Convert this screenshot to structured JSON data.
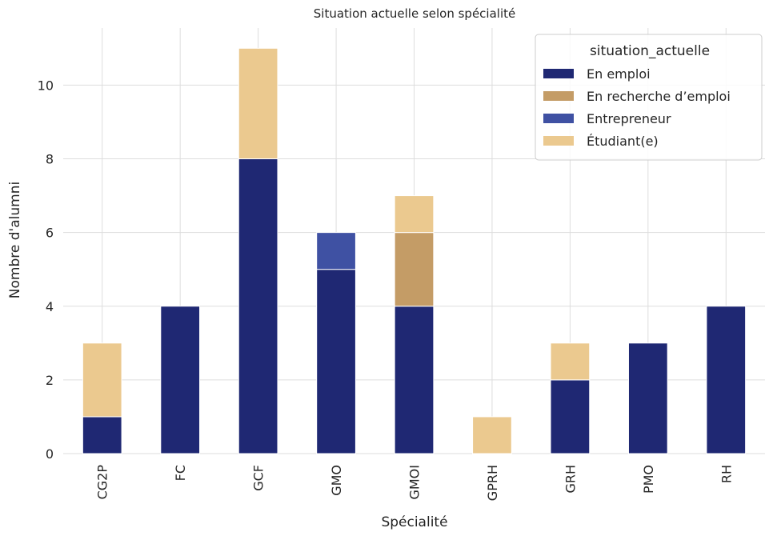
{
  "chart_data": {
    "type": "bar",
    "stacked": true,
    "title": "Situation actuelle selon spécialité",
    "xlabel": "Spécialité",
    "ylabel": "Nombre d'alumni",
    "ylim": [
      0,
      11.55
    ],
    "yticks": [
      0,
      2,
      4,
      6,
      8,
      10
    ],
    "grid": true,
    "legend_position": "top-right",
    "legend_title": "situation_actuelle",
    "categories": [
      "CG2P",
      "FC",
      "GCF",
      "GMO",
      "GMOI",
      "GPRH",
      "GRH",
      "PMO",
      "RH"
    ],
    "series": [
      {
        "name": "En emploi",
        "color": "#1f2873",
        "values": [
          1,
          4,
          8,
          5,
          4,
          0,
          2,
          3,
          4
        ]
      },
      {
        "name": "En recherche d’emploi",
        "color": "#c49c66",
        "values": [
          0,
          0,
          0,
          0,
          2,
          0,
          0,
          0,
          0
        ]
      },
      {
        "name": "Entrepreneur",
        "color": "#3f51a3",
        "values": [
          0,
          0,
          0,
          1,
          0,
          0,
          0,
          0,
          0
        ]
      },
      {
        "name": "Étudiant(e)",
        "color": "#ebc98f",
        "values": [
          2,
          0,
          3,
          0,
          1,
          1,
          1,
          0,
          0
        ]
      }
    ]
  }
}
